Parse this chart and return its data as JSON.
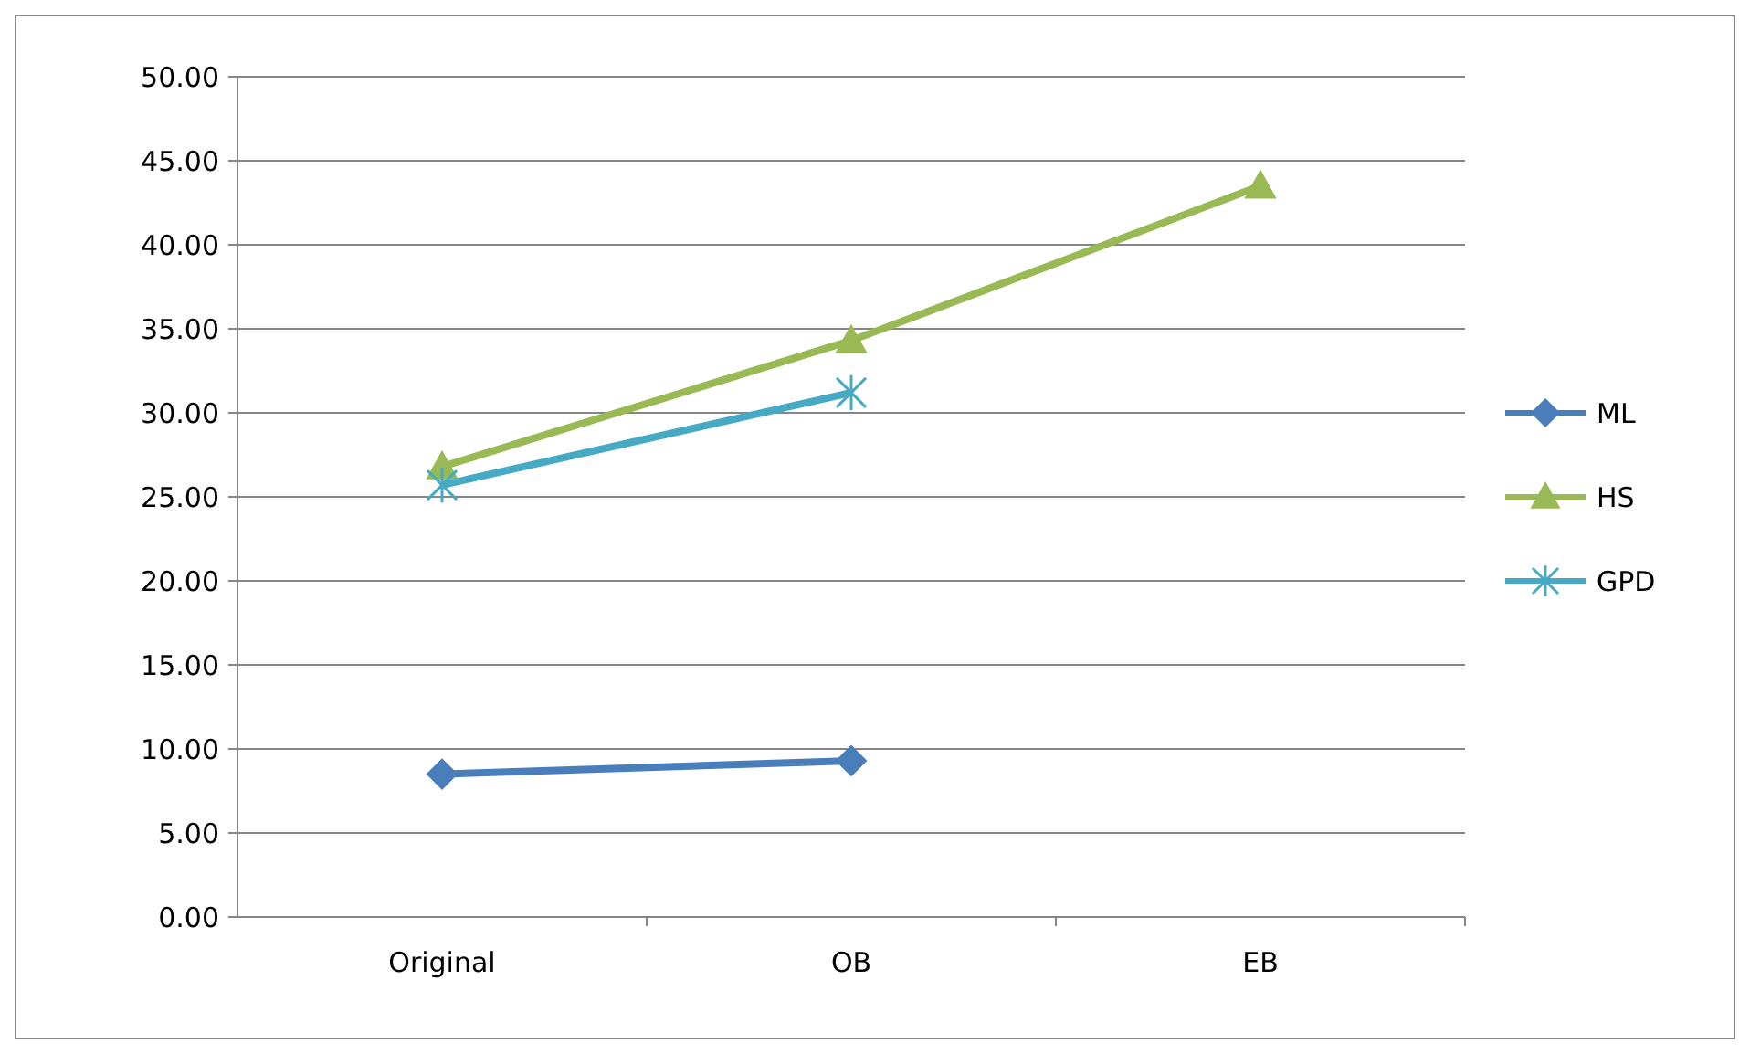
{
  "chart_data": {
    "type": "line",
    "categories": [
      "Original",
      "OB",
      "EB"
    ],
    "series": [
      {
        "name": "ML",
        "color": "#4a7ebb",
        "values": [
          8.5,
          9.3,
          null
        ],
        "marker": "diamond"
      },
      {
        "name": "HS",
        "color": "#98b954",
        "values": [
          26.8,
          34.3,
          43.5
        ],
        "marker": "triangle"
      },
      {
        "name": "GPD",
        "color": "#46aac5",
        "values": [
          25.7,
          31.2,
          null
        ],
        "marker": "cross"
      }
    ],
    "ylim": [
      0,
      50
    ],
    "yticks": [
      {
        "value": 0,
        "label": "0.00"
      },
      {
        "value": 5,
        "label": "5.00"
      },
      {
        "value": 10,
        "label": "10.00"
      },
      {
        "value": 15,
        "label": "15.00"
      },
      {
        "value": 20,
        "label": "20.00"
      },
      {
        "value": 25,
        "label": "25.00"
      },
      {
        "value": 30,
        "label": "30.00"
      },
      {
        "value": 35,
        "label": "35.00"
      },
      {
        "value": 40,
        "label": "40.00"
      },
      {
        "value": 45,
        "label": "45.00"
      },
      {
        "value": 50,
        "label": "50.00"
      }
    ],
    "grid": "y",
    "legend": "right",
    "line_style": "solid"
  }
}
